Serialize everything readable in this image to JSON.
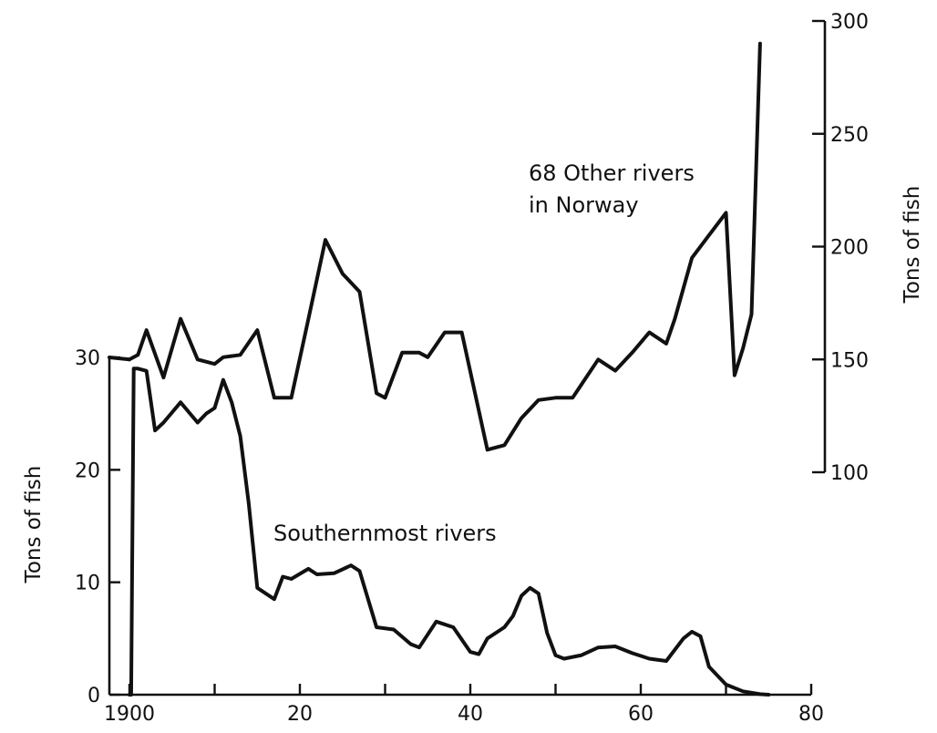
{
  "chart_data": {
    "type": "line",
    "x_ticks": [
      "1900",
      "20",
      "40",
      "60",
      "80"
    ],
    "x_tick_values": [
      1900,
      1920,
      1940,
      1960,
      1980
    ],
    "xlim": [
      1900,
      1980
    ],
    "left_axis": {
      "label": "Tons of fish",
      "ylim": [
        0,
        30
      ],
      "ticks": [
        0,
        10,
        20,
        30
      ]
    },
    "right_axis": {
      "label": "Tons of fish",
      "ylim": [
        100,
        300
      ],
      "ticks": [
        100,
        150,
        200,
        250,
        300
      ]
    },
    "series": [
      {
        "name": "Southernmost rivers",
        "axis": "left",
        "x": [
          1900,
          1900.2,
          1900.5,
          1901,
          1902,
          1903,
          1904,
          1906,
          1908,
          1909,
          1910,
          1911,
          1912,
          1913,
          1914,
          1915,
          1917,
          1918,
          1919,
          1921,
          1922,
          1924,
          1926,
          1927,
          1929,
          1931,
          1933,
          1934,
          1936,
          1938,
          1940,
          1941,
          1942,
          1944,
          1945,
          1946,
          1947,
          1948,
          1949,
          1950,
          1951,
          1953,
          1955,
          1957,
          1959,
          1961,
          1963,
          1965,
          1966,
          1967,
          1968,
          1970,
          1972,
          1974,
          1975
        ],
        "values": [
          0,
          0,
          29,
          29,
          28.8,
          23.5,
          24.2,
          26,
          24.2,
          25,
          25.5,
          28,
          26,
          23,
          17,
          9.5,
          8.5,
          10.5,
          10.3,
          11.2,
          10.7,
          10.8,
          11.5,
          11,
          6,
          5.8,
          4.5,
          4.2,
          6.5,
          6,
          3.8,
          3.6,
          5,
          6,
          7,
          8.8,
          9.5,
          9,
          5.5,
          3.5,
          3.2,
          3.5,
          4.2,
          4.3,
          3.7,
          3.2,
          3,
          5,
          5.6,
          5.2,
          2.5,
          0.9,
          0.3,
          0.05,
          0
        ]
      },
      {
        "name": "68 Other rivers in Norway",
        "axis": "right",
        "x": [
          1900,
          1901,
          1902,
          1904,
          1906,
          1908,
          1910,
          1911,
          1913,
          1915,
          1917,
          1919,
          1921,
          1923,
          1925,
          1927,
          1929,
          1930,
          1932,
          1934,
          1935,
          1937,
          1939,
          1942,
          1944,
          1946,
          1948,
          1950,
          1952,
          1955,
          1957,
          1959,
          1961,
          1963,
          1964,
          1966,
          1968,
          1970,
          1971,
          1972,
          1973,
          1974
        ],
        "values": [
          150,
          152,
          163,
          142,
          168,
          150,
          148,
          151,
          152,
          163,
          133,
          133,
          168,
          203,
          188,
          180,
          135,
          133,
          153,
          153,
          151,
          162,
          162,
          110,
          112,
          124,
          132,
          133,
          133,
          150,
          145,
          153,
          162,
          157,
          168,
          195,
          205,
          215,
          143,
          155,
          170,
          290
        ]
      }
    ],
    "annotations": [
      {
        "series": 1,
        "lines": [
          "68 Other rivers",
          "in Norway"
        ]
      },
      {
        "series": 0,
        "lines": [
          "Southernmost rivers"
        ]
      }
    ],
    "grid": false,
    "legend": "none"
  }
}
